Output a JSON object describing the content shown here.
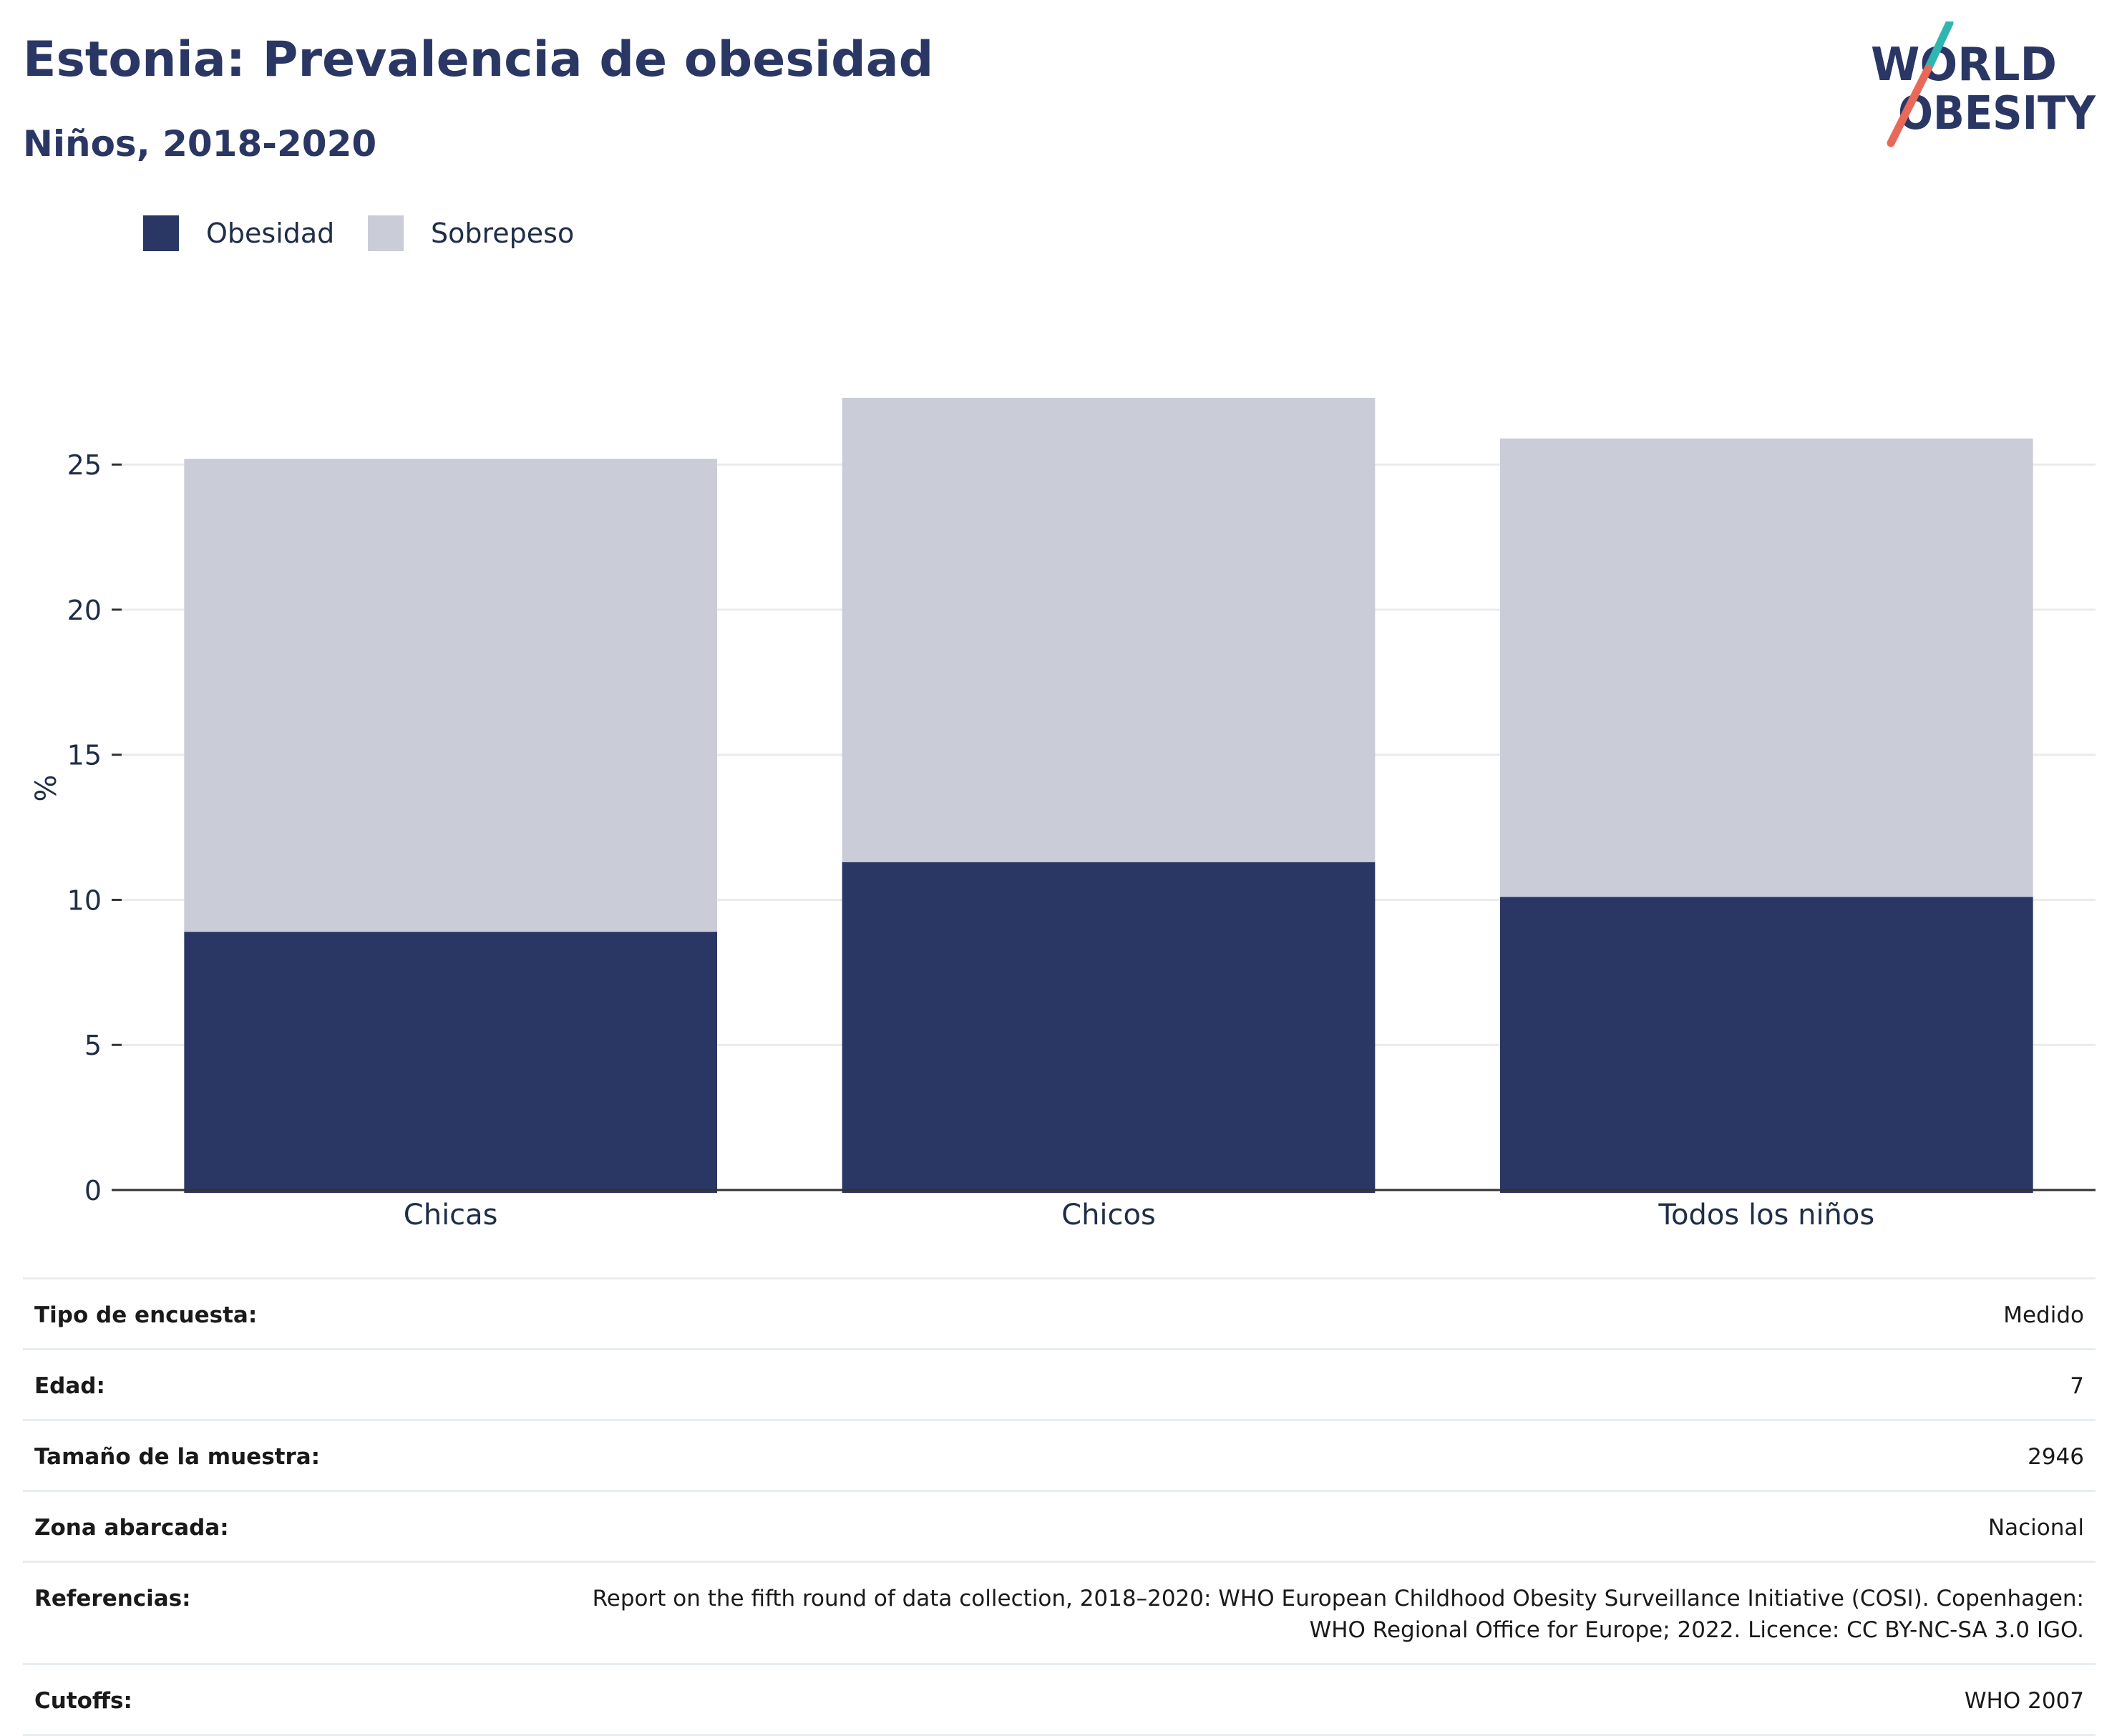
{
  "header": {
    "title": "Estonia: Prevalencia de obesidad",
    "subtitle": "Niños, 2018-2020"
  },
  "logo": {
    "line1": "WORLD",
    "line2": "OBESITY",
    "colors": {
      "text": "#2a3764",
      "slash_top": "#2fb6b0",
      "slash_bottom": "#e8695a"
    }
  },
  "colors": {
    "obesidad": "#2a3764",
    "sobrepeso": "#cacdd8",
    "grid": "#ebebeb",
    "axis": "#333333"
  },
  "chart_data": {
    "type": "bar",
    "stacked": true,
    "categories": [
      "Chicas",
      "Chicos",
      "Todos los niños"
    ],
    "series": [
      {
        "name": "Obesidad",
        "values": [
          8.9,
          11.3,
          10.1
        ]
      },
      {
        "name": "Sobrepeso",
        "values": [
          16.3,
          16.0,
          15.8
        ]
      }
    ],
    "ylabel": "%",
    "ylim": [
      0,
      27.2
    ],
    "yticks": [
      0,
      5,
      10,
      15,
      20,
      25
    ],
    "grid": true,
    "legend_position": "top-left"
  },
  "info": {
    "rows": [
      {
        "label": "Tipo de encuesta:",
        "value": "Medido"
      },
      {
        "label": "Edad:",
        "value": "7"
      },
      {
        "label": "Tamaño de la muestra:",
        "value": "2946"
      },
      {
        "label": "Zona abarcada:",
        "value": "Nacional"
      },
      {
        "label": "Referencias:",
        "value_line1": "Report on the fifth round of data collection, 2018–2020: WHO European Childhood Obesity Surveillance Initiative (COSI). Copenhagen:",
        "value_line2": "WHO Regional Office for Europe; 2022. Licence: CC BY-NC-SA 3.0 IGO."
      },
      {
        "label": "Cutoffs:",
        "value": "WHO 2007"
      }
    ]
  }
}
